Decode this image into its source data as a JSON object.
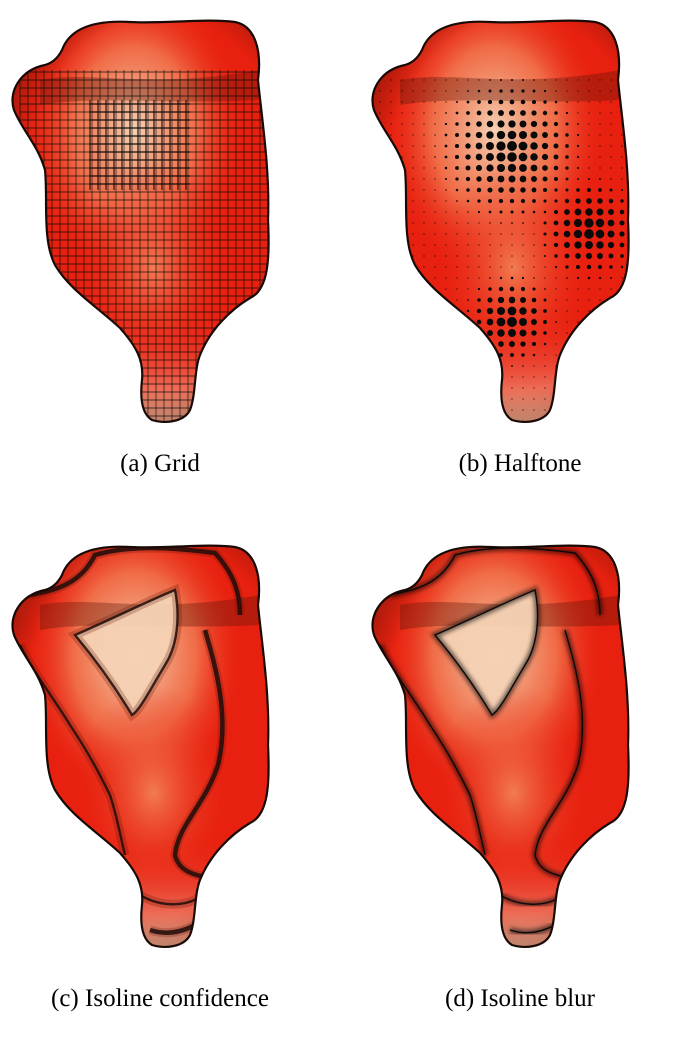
{
  "figure": {
    "panels": [
      {
        "id": "a",
        "caption": "(a) Grid",
        "style": "grid"
      },
      {
        "id": "b",
        "caption": "(b) Halftone",
        "style": "halftone"
      },
      {
        "id": "c",
        "caption": "(c) Isoline confidence",
        "style": "isoline-confidence"
      },
      {
        "id": "d",
        "caption": "(d) Isoline blur",
        "style": "isoline-blur"
      }
    ],
    "colors": {
      "surface_red": "#e8200f",
      "surface_dark": "#5a1408",
      "surface_light": "#f4d2b4",
      "surface_mid": "#f3865a",
      "outline": "#1a0a06",
      "mark": "#0a0a0a"
    }
  }
}
